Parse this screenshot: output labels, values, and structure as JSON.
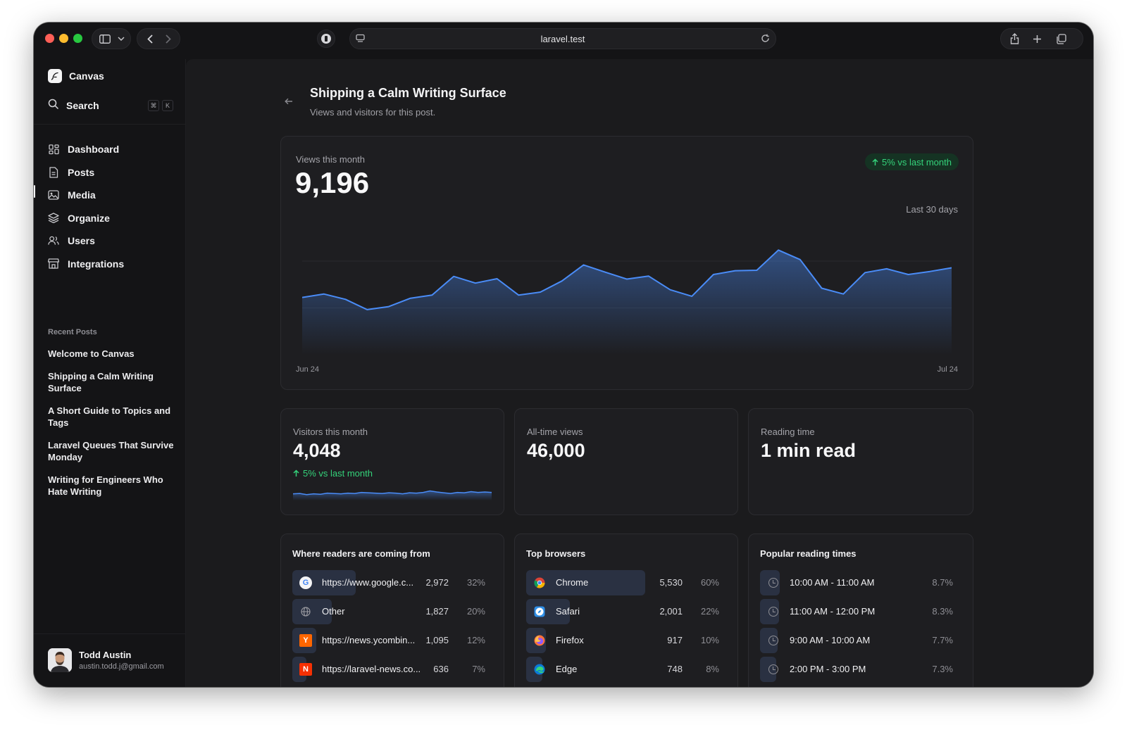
{
  "browser": {
    "address": "laravel.test"
  },
  "sidebar": {
    "brand": "Canvas",
    "search_label": "Search",
    "shortcut_keys": [
      "⌘",
      "K"
    ],
    "nav": [
      {
        "label": "Dashboard",
        "icon": "dashboard-icon"
      },
      {
        "label": "Posts",
        "icon": "document-icon"
      },
      {
        "label": "Media",
        "icon": "image-icon"
      },
      {
        "label": "Organize",
        "icon": "layers-icon"
      },
      {
        "label": "Users",
        "icon": "users-icon"
      },
      {
        "label": "Integrations",
        "icon": "store-icon"
      }
    ],
    "recent_title": "Recent Posts",
    "recent_posts": [
      "Welcome to Canvas",
      "Shipping a Calm Writing Surface",
      "A Short Guide to Topics and Tags",
      "Laravel Queues That Survive Monday",
      "Writing for Engineers Who Hate Writing"
    ],
    "user": {
      "name": "Todd Austin",
      "email": "austin.todd.j@gmail.com"
    }
  },
  "page": {
    "title": "Shipping a Calm Writing Surface",
    "subtitle": "Views and visitors for this post."
  },
  "views_card": {
    "label": "Views this month",
    "value": "9,196",
    "badge": "5% vs last month",
    "range": "Last 30 days",
    "x_start": "Jun 24",
    "x_end": "Jul 24"
  },
  "stats": {
    "visitors": {
      "label": "Visitors this month",
      "value": "4,048",
      "delta": "5% vs last month"
    },
    "all_time": {
      "label": "All-time views",
      "value": "46,000"
    },
    "reading": {
      "label": "Reading time",
      "value": "1 min read"
    }
  },
  "referrers": {
    "title": "Where readers are coming from",
    "rows": [
      {
        "label": "https://www.google.c...",
        "count": "2,972",
        "pct": "32%",
        "share": 0.32,
        "icon": "google-icon"
      },
      {
        "label": "Other",
        "count": "1,827",
        "pct": "20%",
        "share": 0.2,
        "icon": "globe-icon"
      },
      {
        "label": "https://news.ycombin...",
        "count": "1,095",
        "pct": "12%",
        "share": 0.12,
        "icon": "ycombinator-icon"
      },
      {
        "label": "https://laravel-news.co...",
        "count": "636",
        "pct": "7%",
        "share": 0.07,
        "icon": "laravel-news-icon"
      }
    ]
  },
  "browsers": {
    "title": "Top browsers",
    "rows": [
      {
        "label": "Chrome",
        "count": "5,530",
        "pct": "60%",
        "share": 0.6,
        "icon": "chrome-icon"
      },
      {
        "label": "Safari",
        "count": "2,001",
        "pct": "22%",
        "share": 0.22,
        "icon": "safari-icon"
      },
      {
        "label": "Firefox",
        "count": "917",
        "pct": "10%",
        "share": 0.1,
        "icon": "firefox-icon"
      },
      {
        "label": "Edge",
        "count": "748",
        "pct": "8%",
        "share": 0.08,
        "icon": "edge-icon"
      }
    ]
  },
  "reading_times": {
    "title": "Popular reading times",
    "rows": [
      {
        "label": "10:00 AM - 11:00 AM",
        "pct": "8.7%",
        "share": 0.087
      },
      {
        "label": "11:00 AM - 12:00 PM",
        "pct": "8.3%",
        "share": 0.083
      },
      {
        "label": "9:00 AM - 10:00 AM",
        "pct": "7.7%",
        "share": 0.077
      },
      {
        "label": "2:00 PM - 3:00 PM",
        "pct": "7.3%",
        "share": 0.073
      }
    ]
  },
  "chart_data": [
    {
      "type": "area",
      "y": [
        300,
        318,
        290,
        236,
        252,
        296,
        312,
        410,
        375,
        398,
        312,
        328,
        386,
        470,
        432,
        396,
        412,
        340,
        306,
        420,
        440,
        442,
        548,
        498,
        348,
        318,
        430,
        450,
        420,
        436,
        455
      ],
      "ylim": [
        0,
        700
      ],
      "color": "#4a8cf7",
      "grid": true
    },
    {
      "type": "area",
      "y": [
        18,
        19,
        16,
        18,
        17,
        20,
        19,
        18,
        20,
        19,
        22,
        21,
        20,
        19,
        21,
        20,
        18,
        21,
        20,
        22,
        26,
        23,
        21,
        19,
        22,
        21,
        24,
        22,
        23,
        22
      ],
      "ylim": [
        0,
        50
      ],
      "color": "#4a8cf7",
      "grid": false
    }
  ]
}
